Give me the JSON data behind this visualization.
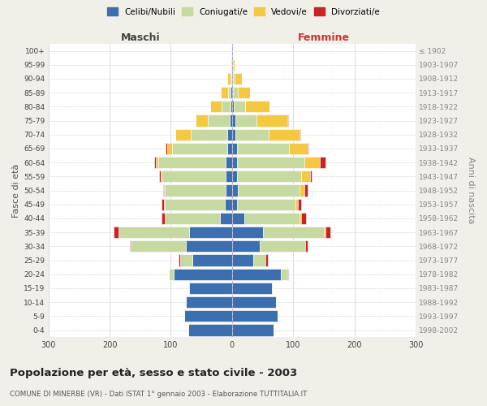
{
  "title": "Popolazione per età, sesso e stato civile - 2003",
  "subtitle": "COMUNE DI MINERBE (VR) - Dati ISTAT 1° gennaio 2003 - Elaborazione TUTTITALIA.IT",
  "ylabel_left": "Fasce di età",
  "ylabel_right": "Anni di nascita",
  "age_groups": [
    "0-4",
    "5-9",
    "10-14",
    "15-19",
    "20-24",
    "25-29",
    "30-34",
    "35-39",
    "40-44",
    "45-49",
    "50-54",
    "55-59",
    "60-64",
    "65-69",
    "70-74",
    "75-79",
    "80-84",
    "85-89",
    "90-94",
    "95-99",
    "100+"
  ],
  "birth_years": [
    "1998-2002",
    "1993-1997",
    "1988-1992",
    "1983-1987",
    "1978-1982",
    "1973-1977",
    "1968-1972",
    "1963-1967",
    "1958-1962",
    "1953-1957",
    "1948-1952",
    "1943-1947",
    "1938-1942",
    "1933-1937",
    "1928-1932",
    "1923-1927",
    "1918-1922",
    "1913-1917",
    "1908-1912",
    "1903-1907",
    "≤ 1902"
  ],
  "colors": {
    "celibe": "#3c6faf",
    "coniugato": "#c5d9a0",
    "vedovo": "#f5c842",
    "divorziato": "#cc2222"
  },
  "legend_labels": [
    "Celibi/Nubili",
    "Coniugati/e",
    "Vedovi/e",
    "Divorziati/e"
  ],
  "maschi": {
    "celibe": [
      72,
      78,
      75,
      70,
      95,
      65,
      75,
      70,
      20,
      12,
      10,
      10,
      10,
      8,
      8,
      4,
      2,
      2,
      1,
      1,
      1
    ],
    "coniugato": [
      0,
      0,
      0,
      2,
      8,
      20,
      90,
      115,
      90,
      98,
      100,
      105,
      110,
      90,
      60,
      35,
      15,
      5,
      2,
      0,
      0
    ],
    "vedovo": [
      0,
      0,
      0,
      0,
      0,
      0,
      0,
      0,
      0,
      1,
      1,
      2,
      5,
      8,
      25,
      20,
      18,
      12,
      5,
      1,
      0
    ],
    "divorziato": [
      0,
      0,
      0,
      0,
      0,
      2,
      2,
      8,
      5,
      4,
      2,
      2,
      2,
      2,
      0,
      0,
      0,
      0,
      0,
      0,
      0
    ]
  },
  "femmine": {
    "nubile": [
      68,
      75,
      72,
      65,
      80,
      35,
      45,
      50,
      20,
      8,
      10,
      8,
      8,
      8,
      5,
      5,
      3,
      2,
      1,
      1,
      1
    ],
    "coniugata": [
      0,
      0,
      0,
      2,
      10,
      20,
      75,
      100,
      90,
      95,
      100,
      105,
      110,
      85,
      55,
      35,
      18,
      8,
      3,
      1,
      0
    ],
    "vedova": [
      0,
      0,
      0,
      0,
      0,
      0,
      0,
      2,
      3,
      5,
      8,
      15,
      25,
      30,
      50,
      50,
      40,
      20,
      12,
      2,
      0
    ],
    "divorziata": [
      0,
      0,
      0,
      0,
      2,
      4,
      4,
      8,
      8,
      5,
      5,
      2,
      10,
      2,
      2,
      2,
      0,
      0,
      0,
      0,
      0
    ]
  },
  "xlim": 300,
  "background_color": "#f0f0e8",
  "plot_background": "#ffffff",
  "grid_color": "#cccccc"
}
